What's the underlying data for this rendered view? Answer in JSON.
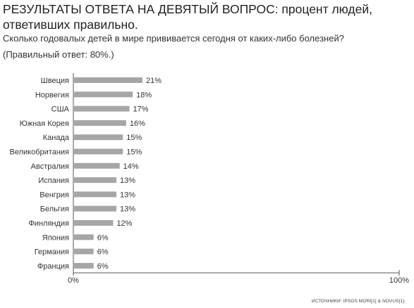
{
  "title": {
    "part1": "РЕЗУЛЬТАТЫ ОТВЕТА НА ДЕВЯТЫЙ ВОПРОС",
    "part2": ": процент людей, ответивших правильно."
  },
  "question": "Сколько годовалых детей в мире прививается сегодня от каких-либо болезней?",
  "correct_answer": "(Правильный ответ: 80%.)",
  "source": "ИСТОЧНИКИ: IPSOS MORI[1] & NOVUS[1].",
  "colors": {
    "bar": "#a6a6a8",
    "axis": "#555555",
    "text": "#333333"
  },
  "chart_data": {
    "type": "bar",
    "orientation": "horizontal",
    "categories": [
      "Швеция",
      "Норвегия",
      "США",
      "Южная Корея",
      "Канада",
      "Великобритания",
      "Австралия",
      "Испания",
      "Венгрия",
      "Бельгия",
      "Финляндия",
      "Япония",
      "Германия",
      "Франция"
    ],
    "values": [
      21,
      18,
      17,
      16,
      15,
      15,
      14,
      13,
      13,
      13,
      12,
      6,
      6,
      6
    ],
    "value_labels": [
      "21%",
      "18%",
      "17%",
      "16%",
      "15%",
      "15%",
      "14%",
      "13%",
      "13%",
      "13%",
      "12%",
      "6%",
      "6%",
      "6%"
    ],
    "xlim": [
      0,
      100
    ],
    "x_tick_labels": [
      "0%",
      "100%"
    ],
    "grid": false
  }
}
